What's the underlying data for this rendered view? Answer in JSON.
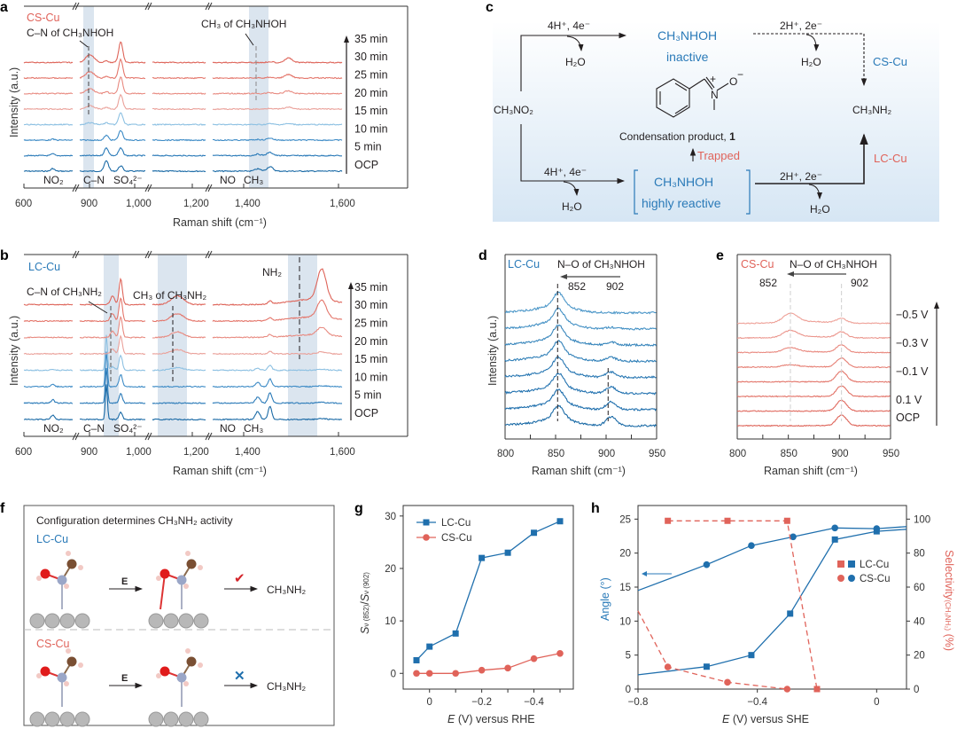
{
  "chart_data": [
    {
      "panel": "a",
      "type": "line",
      "sample_label": "CS-Cu",
      "xlabel": "Raman shift (cm⁻¹)",
      "ylabel": "Intensity (a.u.)",
      "x_segments": [
        [
          600,
          820
        ],
        [
          880,
          1040
        ],
        [
          1070,
          1240
        ],
        [
          1250,
          1600
        ]
      ],
      "xticks": [
        "600",
        "900",
        "1,000",
        "1,200",
        "1,400",
        "1,600"
      ],
      "series_labels": [
        "OCP",
        "5 min",
        "10 min",
        "15 min",
        "20 min",
        "25 min",
        "30 min",
        "35 min"
      ],
      "highlight_bands_cm": [
        [
          880,
          925
        ],
        [
          1430,
          1480
        ]
      ],
      "annotations": [
        "C–N of CH₃NHOH",
        "CH₃ of CH₃NHOH",
        "NO₂",
        "C–N",
        "SO₄²⁻",
        "NO",
        "CH₃"
      ],
      "peaks": {
        "C-N": 945,
        "SO4": 980,
        "NO2": 730,
        "NO": 1372,
        "CH3": 1405,
        "CN_CH3NHOH": 905,
        "CH3_CH3NHOH": 1455
      }
    },
    {
      "panel": "b",
      "type": "line",
      "sample_label": "LC-Cu",
      "xlabel": "Raman shift (cm⁻¹)",
      "ylabel": "Intensity (a.u.)",
      "xticks": [
        "600",
        "900",
        "1,000",
        "1,200",
        "1,400",
        "1,600"
      ],
      "series_labels": [
        "OCP",
        "5 min",
        "10 min",
        "15 min",
        "20 min",
        "25 min",
        "30 min",
        "35 min"
      ],
      "annotations": [
        "C–N of CH₃NH₂",
        "CH₃ of CH₃NH₂",
        "NH₂",
        "NO₂",
        "C–N",
        "SO₄²⁻",
        "NO",
        "CH₃"
      ],
      "peaks": {
        "C-N": 945,
        "SO4": 980,
        "NO2": 730,
        "NO": 1372,
        "CH3": 1405,
        "CN_CH3NH2": 960,
        "CH3_CH3NH2": 1150,
        "NH2": 1545
      }
    },
    {
      "panel": "d",
      "type": "line",
      "sample_label": "LC-Cu",
      "title": "N–O of CH₃NHOH",
      "xlabel": "Raman shift (cm⁻¹)",
      "ylabel": "Intensity (a.u.)",
      "xlim": [
        800,
        950
      ],
      "xticks": [
        800,
        850,
        900,
        950
      ],
      "peak_labels": [
        "852",
        "902"
      ],
      "n_traces": 8
    },
    {
      "panel": "e",
      "type": "line",
      "sample_label": "CS-Cu",
      "title": "N–O of CH₃NHOH",
      "xlabel": "Raman shift (cm⁻¹)",
      "xlim": [
        800,
        950
      ],
      "xticks": [
        800,
        850,
        900,
        950
      ],
      "peak_labels": [
        "852",
        "902"
      ],
      "series_labels": [
        "OCP",
        "0.1 V",
        "-0.1 V",
        "-0.3 V",
        "-0.5 V"
      ],
      "n_traces": 8
    },
    {
      "panel": "g",
      "type": "line",
      "xlabel": "E (V) versus RHE",
      "ylabel": "Sν(852)/Sν(902)",
      "x": [
        0.05,
        0,
        -0.1,
        -0.2,
        -0.3,
        -0.4,
        -0.5
      ],
      "xticks": [
        "0",
        "−0.2",
        "−0.4"
      ],
      "ylim": [
        -3,
        32
      ],
      "yticks": [
        0,
        10,
        20,
        30
      ],
      "legend": "top-left",
      "series": [
        {
          "name": "LC-Cu",
          "marker": "square",
          "color": "#1f6fad",
          "values": [
            2.5,
            5.1,
            7.6,
            22.0,
            23.0,
            26.8,
            29.0
          ]
        },
        {
          "name": "CS-Cu",
          "marker": "circle",
          "color": "#e0635a",
          "values": [
            0,
            0,
            0,
            0.6,
            1.0,
            2.8,
            3.8
          ]
        }
      ]
    },
    {
      "panel": "h",
      "type": "line",
      "xlabel": "E (V) versus SHE",
      "ylabel_left": "Angle (°)",
      "ylabel_right": "Selectivity(CH₃NH₂) (%)",
      "xlim": [
        -0.8,
        0.1
      ],
      "xticks": [
        "−0.8",
        "−0.4",
        "0"
      ],
      "ylim_left": [
        0,
        27
      ],
      "yticks_left": [
        0,
        5,
        10,
        15,
        20,
        25
      ],
      "ylim_right": [
        0,
        108
      ],
      "yticks_right": [
        0,
        20,
        40,
        60,
        80,
        100
      ],
      "legend": "center-right",
      "series": [
        {
          "name": "LC-Cu angle",
          "axis": "left",
          "marker": "square",
          "color": "#1f6fad",
          "style": "solid",
          "x": [
            -0.8,
            -0.57,
            -0.42,
            -0.29,
            -0.14,
            0,
            0.1
          ],
          "values": [
            2.1,
            3.3,
            5.0,
            11.1,
            22.0,
            23.2,
            23.5
          ]
        },
        {
          "name": "CS-Cu angle",
          "axis": "left",
          "marker": "circle",
          "color": "#1f6fad",
          "style": "solid",
          "x": [
            -0.8,
            -0.57,
            -0.42,
            -0.28,
            -0.14,
            0,
            0.1
          ],
          "values": [
            14.5,
            18.3,
            21.1,
            22.4,
            23.7,
            23.6,
            23.9
          ]
        },
        {
          "name": "LC-Cu selectivity",
          "axis": "right",
          "marker": "square",
          "color": "#e0635a",
          "style": "dashed",
          "x": [
            -0.7,
            -0.5,
            -0.3,
            -0.2
          ],
          "values": [
            99,
            99,
            99,
            0
          ]
        },
        {
          "name": "CS-Cu selectivity",
          "axis": "right",
          "marker": "circle",
          "color": "#e0635a",
          "style": "dashed",
          "x": [
            -0.8,
            -0.7,
            -0.5,
            -0.3
          ],
          "values": [
            46,
            13,
            4,
            0
          ]
        }
      ],
      "legend_entries": [
        "LC-Cu",
        "CS-Cu"
      ]
    }
  ],
  "panels": {
    "a": {
      "label": "a",
      "sample": "CS-Cu",
      "ann1": "C–N of CH₃NHOH",
      "ann2": "CH₃ of CH₃NHOH",
      "bottom": [
        "NO₂",
        "C–N",
        "SO₄²⁻",
        "NO",
        "CH₃"
      ]
    },
    "b": {
      "label": "b",
      "sample": "LC-Cu",
      "ann1": "C–N of CH₃NH₂",
      "ann2": "CH₃ of CH₃NH₂",
      "ann3": "NH₂",
      "bottom": [
        "NO₂",
        "C–N",
        "SO₄²⁻",
        "NO",
        "CH₃"
      ]
    },
    "c": {
      "label": "c",
      "reactant": "CH₃NO₂",
      "product": "CH₃NH₂",
      "top_step": "4H⁺, 4e⁻",
      "top_step2": "2H⁺, 2e⁻",
      "bottom_step": "4H⁺, 4e⁻",
      "bottom_step2": "2H⁺, 2e⁻",
      "water": "H₂O",
      "inter_top": "CH₃NHOH",
      "inter_top_state": "inactive",
      "inter_bottom": "CH₃NHOH",
      "inter_bottom_state": "highly reactive",
      "condensation": "Condensation product, ",
      "condensation_num": "1",
      "trapped": "Trapped",
      "cs": "CS-Cu",
      "lc": "LC-Cu"
    },
    "d": {
      "label": "d",
      "sample": "LC-Cu",
      "title": "N–O of CH₃NHOH",
      "p1": "852",
      "p2": "902"
    },
    "e": {
      "label": "e",
      "sample": "CS-Cu",
      "title": "N–O of CH₃NHOH",
      "p1": "852",
      "p2": "902"
    },
    "f": {
      "label": "f",
      "title": "Configuration determines CH₃NH₂ activity",
      "lc": "LC-Cu",
      "cs": "CS-Cu",
      "field": "E",
      "product": "CH₃NH₂",
      "ok": "✔",
      "no": "✕"
    },
    "g": {
      "label": "g"
    },
    "h": {
      "label": "h"
    }
  }
}
